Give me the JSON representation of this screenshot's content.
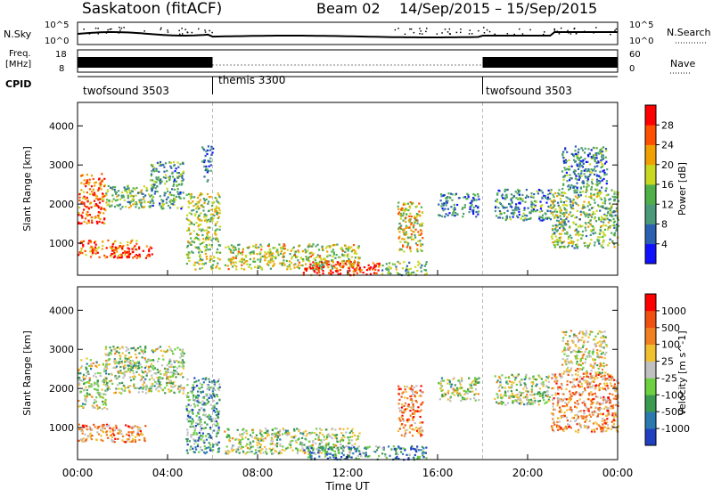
{
  "header": {
    "title": "Saskatoon (fitACF)",
    "beam": "Beam 02",
    "date_range": "14/Sep/2015 – 15/Sep/2015"
  },
  "noise_panel": {
    "left_label": "N.Sky",
    "right_label": "N.Search",
    "left_ticks": [
      "10^5",
      "10^0"
    ],
    "right_ticks": [
      "10^5",
      "10^0"
    ]
  },
  "freq_panel": {
    "left_label_top": "Freq.",
    "left_label_bottom": "[MHz]",
    "right_label": "Nave",
    "left_ticks": [
      "18",
      "8"
    ],
    "right_ticks": [
      "60",
      "0"
    ]
  },
  "cpid": {
    "label": "CPID",
    "segments": [
      {
        "name": "twofsound 3503",
        "start_hour": 0,
        "end_hour": 6
      },
      {
        "name": "themis 3300",
        "start_hour": 6,
        "end_hour": 18
      },
      {
        "name": "twofsound 3503",
        "start_hour": 18,
        "end_hour": 24
      }
    ]
  },
  "chart_data": [
    {
      "type": "heatmap",
      "title": "",
      "quantity": "Power",
      "xlabel": "Time UT",
      "ylabel": "Slant Range [km]",
      "colorbar_label": "Power [dB]",
      "colorbar_ticks": [
        "28",
        "24",
        "20",
        "16",
        "12",
        "8",
        "4"
      ],
      "colorbar_colors": [
        "#1010ff",
        "#2b60b0",
        "#4a9a7a",
        "#4fb04a",
        "#c8d820",
        "#f0a000",
        "#ff5000",
        "#ff0000"
      ],
      "xlim_hours": [
        0,
        24
      ],
      "ylim_km": [
        180,
        4600
      ],
      "yticks": [
        1000,
        2000,
        3000,
        4000
      ],
      "regions": [
        {
          "t": [
            0,
            2.6
          ],
          "r": [
            650,
            1100
          ],
          "level": 0.75
        },
        {
          "t": [
            1.5,
            3.3
          ],
          "r": [
            600,
            950
          ],
          "level": 0.95
        },
        {
          "t": [
            0,
            1.2
          ],
          "r": [
            1500,
            2800
          ],
          "level": 0.8
        },
        {
          "t": [
            1.2,
            3.2
          ],
          "r": [
            1900,
            2500
          ],
          "level": 0.45
        },
        {
          "t": [
            3.2,
            4.7
          ],
          "r": [
            1900,
            3100
          ],
          "level": 0.35
        },
        {
          "t": [
            4.8,
            6.3
          ],
          "r": [
            350,
            2300
          ],
          "level": 0.5
        },
        {
          "t": [
            5.5,
            6.0
          ],
          "r": [
            2600,
            3500
          ],
          "level": 0.25
        },
        {
          "t": [
            6.5,
            12.5
          ],
          "r": [
            350,
            1000
          ],
          "level": 0.55
        },
        {
          "t": [
            10.0,
            13.5
          ],
          "r": [
            200,
            550
          ],
          "level": 0.9
        },
        {
          "t": [
            13.5,
            15.5
          ],
          "r": [
            200,
            550
          ],
          "level": 0.4
        },
        {
          "t": [
            14.2,
            15.3
          ],
          "r": [
            800,
            2100
          ],
          "level": 0.6
        },
        {
          "t": [
            16.0,
            17.8
          ],
          "r": [
            1700,
            2300
          ],
          "level": 0.25
        },
        {
          "t": [
            18.5,
            21.0
          ],
          "r": [
            1600,
            2400
          ],
          "level": 0.3
        },
        {
          "t": [
            21.0,
            24.0
          ],
          "r": [
            900,
            2400
          ],
          "level": 0.45
        },
        {
          "t": [
            21.5,
            23.5
          ],
          "r": [
            2400,
            3500
          ],
          "level": 0.3
        }
      ]
    },
    {
      "type": "heatmap",
      "title": "",
      "quantity": "Velocity",
      "xlabel": "Time UT",
      "ylabel": "Slant Range [km]",
      "colorbar_label": "Velocity [m s^-1]",
      "colorbar_ticks": [
        "1000",
        "500",
        "100",
        "25",
        "-25",
        "-100",
        "-500",
        "-1000"
      ],
      "colorbar_colors": [
        "#2040c0",
        "#2a7ab0",
        "#3a9a50",
        "#6cd040",
        "#c0c0c0",
        "#f0c030",
        "#f08020",
        "#f05010",
        "#ff0000"
      ],
      "xlim_hours": [
        0,
        24
      ],
      "ylim_km": [
        180,
        4600
      ],
      "yticks": [
        1000,
        2000,
        3000,
        4000
      ],
      "x_tick_labels": [
        "00:00",
        "04:00",
        "08:00",
        "12:00",
        "16:00",
        "20:00",
        "00:00"
      ],
      "regions": [
        {
          "t": [
            0,
            3.0
          ],
          "r": [
            650,
            1100
          ],
          "level": 0.7
        },
        {
          "t": [
            0,
            1.3
          ],
          "r": [
            1500,
            2800
          ],
          "level": 0.45
        },
        {
          "t": [
            1.2,
            4.7
          ],
          "r": [
            1900,
            3100
          ],
          "level": 0.45
        },
        {
          "t": [
            4.8,
            6.3
          ],
          "r": [
            350,
            2300
          ],
          "level": 0.3
        },
        {
          "t": [
            6.5,
            12.5
          ],
          "r": [
            350,
            1000
          ],
          "level": 0.45
        },
        {
          "t": [
            10.0,
            15.5
          ],
          "r": [
            200,
            550
          ],
          "level": 0.25
        },
        {
          "t": [
            14.2,
            15.3
          ],
          "r": [
            800,
            2100
          ],
          "level": 0.75
        },
        {
          "t": [
            16.0,
            17.8
          ],
          "r": [
            1700,
            2300
          ],
          "level": 0.45
        },
        {
          "t": [
            18.5,
            21.0
          ],
          "r": [
            1600,
            2400
          ],
          "level": 0.45
        },
        {
          "t": [
            21.0,
            24.0
          ],
          "r": [
            900,
            2400
          ],
          "level": 0.7
        },
        {
          "t": [
            21.5,
            23.5
          ],
          "r": [
            2400,
            3500
          ],
          "level": 0.55
        }
      ]
    }
  ]
}
